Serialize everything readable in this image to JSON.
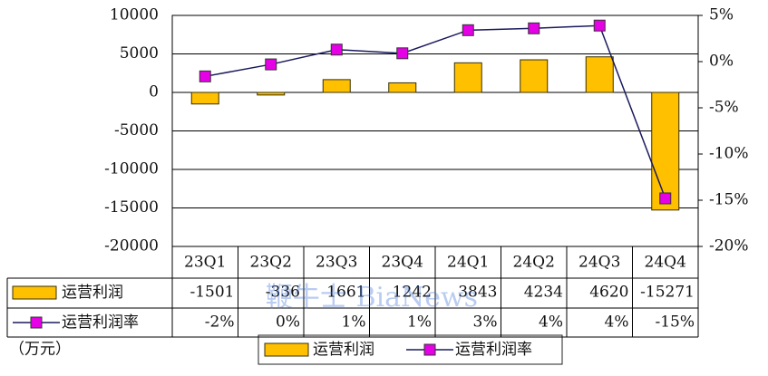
{
  "chart_data": {
    "type": "bar-line-table",
    "categories": [
      "23Q1",
      "23Q2",
      "23Q3",
      "23Q4",
      "24Q1",
      "24Q2",
      "24Q3",
      "24Q4"
    ],
    "series": [
      {
        "name": "运营利润",
        "type": "bar",
        "color": "#FFC000",
        "values": [
          -1501,
          -336,
          1661,
          1242,
          3843,
          4234,
          4620,
          -15271
        ]
      },
      {
        "name": "运营利润率",
        "type": "line",
        "axis": "y2",
        "color": "#E600E6",
        "line_color": "#1a1a5e",
        "values": [
          -1.6,
          -0.3,
          1.3,
          0.9,
          3.4,
          3.6,
          3.9,
          -14.8
        ],
        "value_labels": [
          "-2%",
          "0%",
          "1%",
          "1%",
          "3%",
          "4%",
          "4%",
          "-15%"
        ]
      }
    ],
    "ylim": [
      -20000,
      10000
    ],
    "yticks": [
      -20000,
      -15000,
      -10000,
      -5000,
      0,
      5000,
      10000
    ],
    "y2lim": [
      -20,
      5
    ],
    "y2ticks": [
      {
        "value": -20,
        "label": "-20%"
      },
      {
        "value": -15,
        "label": "-15%"
      },
      {
        "value": -10,
        "label": "-10%"
      },
      {
        "value": -5,
        "label": "-5%"
      },
      {
        "value": 0,
        "label": "0%"
      },
      {
        "value": 5,
        "label": "5%"
      }
    ],
    "grid": true,
    "unit_label": "（万元）",
    "watermark": "鞭牛士 BiaNews"
  }
}
